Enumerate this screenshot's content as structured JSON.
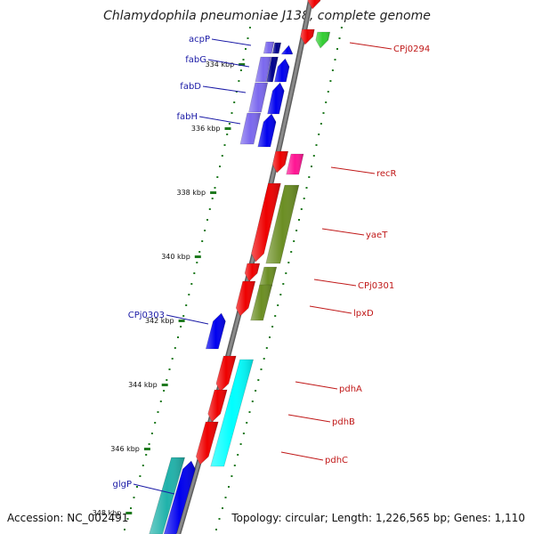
{
  "header": {
    "title": "Chlamydophila pneumoniae J138, complete genome"
  },
  "footer": {
    "accession": "Accession: NC_002491",
    "summary": "Topology: circular; Length: 1,226,565 bp; Genes: 1,110"
  },
  "axis": {
    "unit": "kbp",
    "ticks": [
      {
        "value": 334,
        "label": "334 kbp"
      },
      {
        "value": 336,
        "label": "336 kbp"
      },
      {
        "value": 338,
        "label": "338 kbp"
      },
      {
        "value": 340,
        "label": "340 kbp"
      },
      {
        "value": 342,
        "label": "342 kbp"
      },
      {
        "value": 344,
        "label": "344 kbp"
      },
      {
        "value": 346,
        "label": "346 kbp"
      },
      {
        "value": 348,
        "label": "348 kbp"
      }
    ]
  },
  "genes": [
    {
      "name": "acpP",
      "labeled": true
    },
    {
      "name": "fabG",
      "labeled": true
    },
    {
      "name": "fabD",
      "labeled": true
    },
    {
      "name": "fabH",
      "labeled": true
    },
    {
      "name": "CPj0294",
      "labeled": true
    },
    {
      "name": "recR",
      "labeled": true
    },
    {
      "name": "yaeT",
      "labeled": true
    },
    {
      "name": "CPj0301",
      "labeled": true
    },
    {
      "name": "lpxD",
      "labeled": true
    },
    {
      "name": "CPj0303",
      "labeled": true
    },
    {
      "name": "pdhA",
      "labeled": true
    },
    {
      "name": "pdhB",
      "labeled": true
    },
    {
      "name": "pdhC",
      "labeled": true
    },
    {
      "name": "glgP",
      "labeled": true
    }
  ],
  "colors": {
    "backbone": "#8a8a8a",
    "tick": "#1f7a1f",
    "left_label": "#1a1aa6",
    "right_label": "#c01818",
    "red": "#ee0000",
    "blue": "#0000ee",
    "purple": "#7b68ee",
    "navy": "#00008b",
    "olive": "#6b8e23",
    "green": "#32cd32",
    "magenta": "#ff1493",
    "cyan": "#00ffff",
    "teal": "#20b2aa"
  }
}
